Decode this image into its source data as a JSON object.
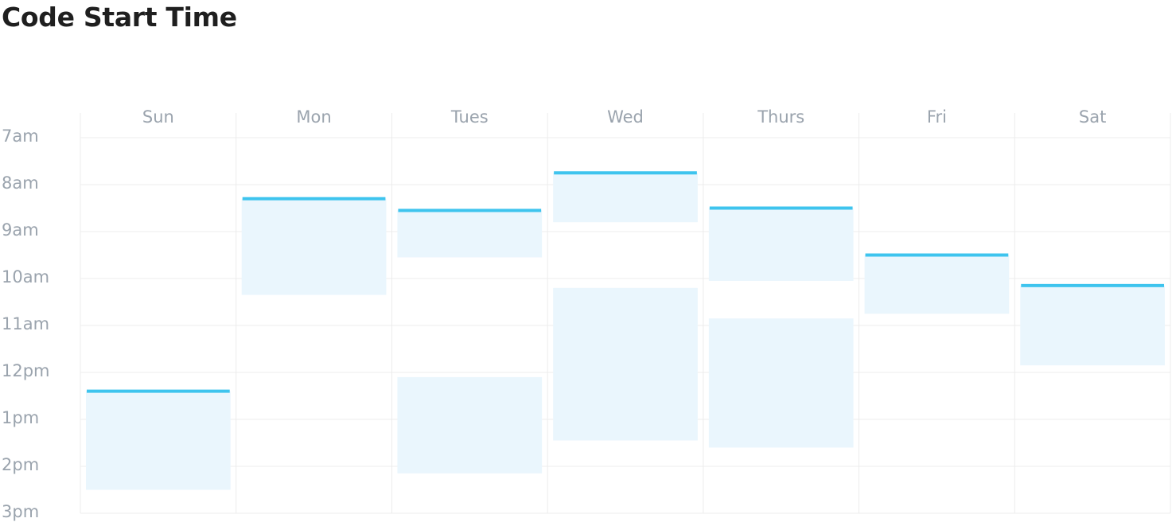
{
  "title": "Code Start Time",
  "colors": {
    "block_fill": "#eaf6fd",
    "start_line": "#3ec4ee",
    "grid": "#ececec",
    "label": "#9aa3ad",
    "title": "#1f1f1f"
  },
  "chart_data": {
    "type": "calendar-timeline",
    "title": "Code Start Time",
    "days": [
      "Sun",
      "Mon",
      "Tues",
      "Wed",
      "Thurs",
      "Fri",
      "Sat"
    ],
    "hour_labels": [
      "7am",
      "8am",
      "9am",
      "10am",
      "11am",
      "12pm",
      "1pm",
      "2pm",
      "3pm"
    ],
    "y_range_hours": [
      7,
      15
    ],
    "grid": true,
    "blocks": [
      {
        "day": "Sun",
        "start": 12.4,
        "end": 14.5,
        "start_line": true
      },
      {
        "day": "Mon",
        "start": 8.3,
        "end": 10.35,
        "start_line": true
      },
      {
        "day": "Tues",
        "start": 8.55,
        "end": 9.55,
        "start_line": true
      },
      {
        "day": "Tues",
        "start": 12.1,
        "end": 14.15,
        "start_line": false
      },
      {
        "day": "Wed",
        "start": 7.75,
        "end": 8.8,
        "start_line": true
      },
      {
        "day": "Wed",
        "start": 10.2,
        "end": 13.45,
        "start_line": false
      },
      {
        "day": "Thurs",
        "start": 8.5,
        "end": 10.05,
        "start_line": true
      },
      {
        "day": "Thurs",
        "start": 10.85,
        "end": 13.6,
        "start_line": false
      },
      {
        "day": "Fri",
        "start": 9.5,
        "end": 10.75,
        "start_line": true
      },
      {
        "day": "Sat",
        "start": 10.15,
        "end": 11.85,
        "start_line": true
      }
    ]
  }
}
